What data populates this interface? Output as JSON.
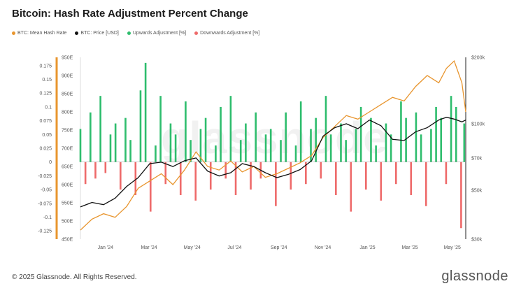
{
  "page": {
    "title": "Bitcoin: Hash Rate Adjustment Percent Change",
    "footer": "© 2025 Glassnode. All Rights Reserved.",
    "brand": "glassnode",
    "watermark": "glassnode"
  },
  "chart_data": {
    "type": "bar",
    "title": "Bitcoin: Hash Rate Adjustment Percent Change",
    "legend": [
      {
        "name": "BTC: Mean Hash Rate",
        "color": "#e8952e"
      },
      {
        "name": "BTC: Price [USD]",
        "color": "#111111"
      },
      {
        "name": "Upwards Adjustment [%]",
        "color": "#2ebd6d"
      },
      {
        "name": "Downwards Adjustment [%]",
        "color": "#ee6a6a"
      }
    ],
    "x_ticks": [
      "Jan '24",
      "Mar '24",
      "May '24",
      "Jul '24",
      "Sep '24",
      "Nov '24",
      "Jan '25",
      "Mar '25",
      "May '25"
    ],
    "y_left_ticks": [
      "0.175",
      "0.15",
      "0.125",
      "0.1",
      "0.075",
      "0.05",
      "0.025",
      "0",
      "-0.025",
      "-0.05",
      "-0.075",
      "-0.1",
      "-0.125"
    ],
    "y_left_range": [
      -0.14,
      0.19
    ],
    "y_hash_ticks": [
      "950E",
      "900E",
      "850E",
      "800E",
      "750E",
      "700E",
      "650E",
      "600E",
      "550E",
      "500E",
      "450E"
    ],
    "y_hash_range": [
      450,
      950
    ],
    "y_price_ticks": [
      {
        "label": "$200k",
        "value": 200
      },
      {
        "label": "$100k",
        "value": 100
      },
      {
        "label": "$70k",
        "value": 70
      },
      {
        "label": "$50k",
        "value": 50
      },
      {
        "label": "$30k",
        "value": 30
      }
    ],
    "y_price_range": [
      30,
      200
    ],
    "y_price_scale": "log",
    "x_range": [
      0,
      100
    ],
    "x_tick_positions": [
      6.5,
      17.8,
      29,
      40,
      51.5,
      62.9,
      74.5,
      85.5,
      96.5
    ],
    "adjustments": {
      "x": [
        0.0,
        1.3,
        2.6,
        3.9,
        5.2,
        6.5,
        7.8,
        9.1,
        10.4,
        11.7,
        13.0,
        14.3,
        15.6,
        16.9,
        18.2,
        19.5,
        20.8,
        22.1,
        23.4,
        24.7,
        26.0,
        27.3,
        28.6,
        29.9,
        31.2,
        32.5,
        33.8,
        35.1,
        36.4,
        37.7,
        39.0,
        40.3,
        41.6,
        42.9,
        44.2,
        45.5,
        46.8,
        48.1,
        49.4,
        50.7,
        52.0,
        53.3,
        54.6,
        55.9,
        57.2,
        58.5,
        59.8,
        61.1,
        62.4,
        63.7,
        65.0,
        66.3,
        67.6,
        68.9,
        70.2,
        71.5,
        72.8,
        74.1,
        75.4,
        76.7,
        78.0,
        79.3,
        80.6,
        81.9,
        83.2,
        84.5,
        85.8,
        87.1,
        88.4,
        89.7,
        91.0,
        92.3,
        93.6,
        94.9,
        96.2,
        97.5,
        98.8,
        99.6
      ],
      "y": [
        0.06,
        -0.04,
        0.09,
        -0.03,
        0.12,
        -0.02,
        0.05,
        0.07,
        -0.05,
        0.08,
        0.04,
        -0.06,
        0.13,
        0.18,
        -0.09,
        0.03,
        0.12,
        -0.04,
        0.07,
        0.05,
        -0.06,
        0.11,
        0.04,
        -0.07,
        0.06,
        0.08,
        -0.05,
        0.03,
        0.1,
        -0.03,
        0.12,
        -0.06,
        0.04,
        0.07,
        -0.05,
        0.09,
        -0.03,
        0.05,
        0.06,
        -0.08,
        0.04,
        0.09,
        -0.05,
        0.03,
        0.11,
        -0.04,
        0.06,
        0.08,
        -0.03,
        0.12,
        0.05,
        -0.06,
        0.07,
        0.04,
        -0.09,
        0.06,
        0.1,
        -0.05,
        0.08,
        0.03,
        -0.07,
        0.07,
        0.05,
        -0.04,
        0.11,
        0.08,
        -0.06,
        0.09,
        0.05,
        -0.08,
        0.06,
        0.1,
        0.08,
        -0.04,
        0.12,
        0.1,
        -0.12,
        0.07
      ]
    },
    "mean_hash_rate": {
      "x": [
        0,
        3,
        6,
        9,
        12,
        15,
        18,
        21,
        24,
        27,
        30,
        33,
        36,
        39,
        42,
        45,
        48,
        51,
        54,
        57,
        60,
        63,
        66,
        69,
        72,
        75,
        78,
        81,
        84,
        87,
        90,
        93,
        95,
        97,
        99,
        100
      ],
      "y": [
        475,
        505,
        520,
        510,
        540,
        590,
        610,
        630,
        600,
        640,
        690,
        650,
        640,
        665,
        635,
        650,
        620,
        630,
        645,
        660,
        680,
        730,
        760,
        790,
        780,
        800,
        820,
        840,
        830,
        870,
        900,
        880,
        920,
        940,
        880,
        800
      ]
    },
    "price_usd": {
      "x": [
        0,
        3,
        6,
        9,
        12,
        15,
        18,
        21,
        24,
        27,
        30,
        33,
        36,
        39,
        42,
        45,
        48,
        51,
        54,
        57,
        60,
        63,
        66,
        69,
        72,
        75,
        78,
        81,
        84,
        87,
        90,
        93,
        95,
        97,
        99,
        100
      ],
      "y": [
        42,
        44,
        43,
        46,
        52,
        57,
        66,
        67,
        64,
        68,
        70,
        61,
        58,
        60,
        66,
        64,
        60,
        57,
        59,
        62,
        68,
        88,
        96,
        100,
        95,
        104,
        98,
        85,
        84,
        92,
        96,
        104,
        107,
        105,
        102,
        104
      ]
    }
  }
}
